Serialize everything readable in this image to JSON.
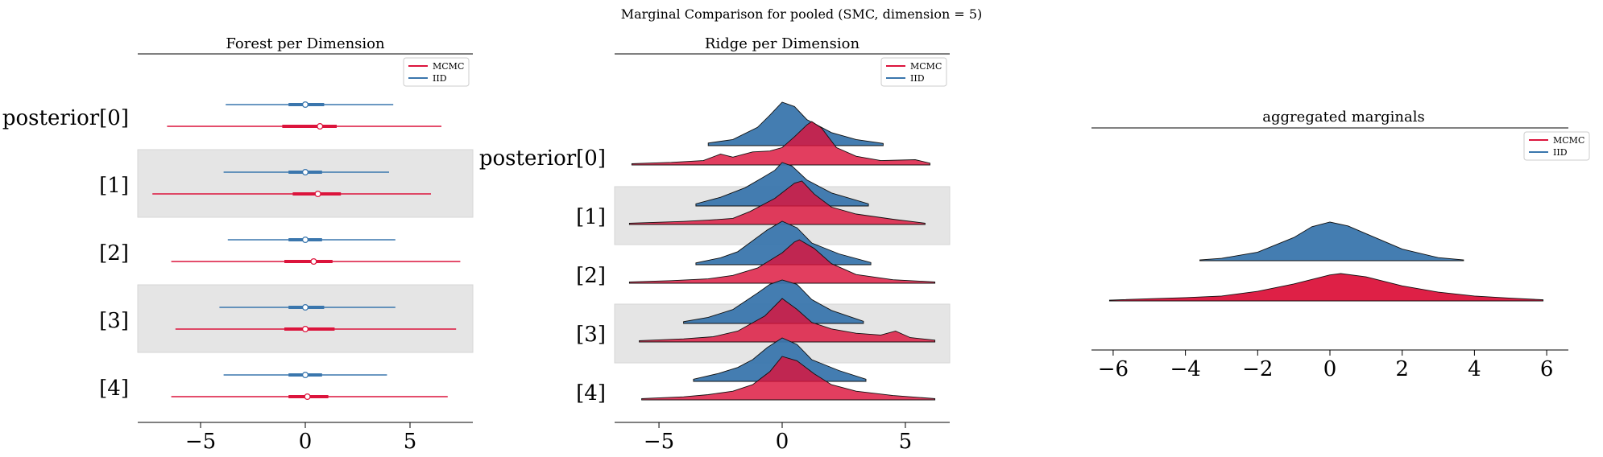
{
  "suptitle": "Marginal Comparison for pooled (SMC, dimension = 5)",
  "colors": {
    "mcmc": "#dc143c",
    "iid": "#3a76ad",
    "band": "#e5e5e5"
  },
  "legend": [
    "MCMC",
    "IID"
  ],
  "forest_panel": {
    "title": "Forest per Dimension",
    "row_labels": [
      "posterior[0]",
      "[1]",
      "[2]",
      "[3]",
      "[4]"
    ],
    "xticks": [
      "−5",
      "0",
      "5"
    ]
  },
  "ridge_panel": {
    "title": "Ridge per Dimension",
    "row_labels": [
      "posterior[0]",
      "[1]",
      "[2]",
      "[3]",
      "[4]"
    ],
    "xticks": [
      "−5",
      "0",
      "5"
    ]
  },
  "aggregate_panel": {
    "title": "aggregated marginals",
    "xticks": [
      "−6",
      "−4",
      "−2",
      "0",
      "2",
      "4",
      "6"
    ]
  },
  "chart_data": [
    {
      "type": "forest",
      "title": "Forest per Dimension",
      "categories": [
        "posterior[0]",
        "[1]",
        "[2]",
        "[3]",
        "[4]"
      ],
      "xlim": [
        -8,
        8
      ],
      "legend_placement": "top-right",
      "series": [
        {
          "name": "MCMC",
          "points": [
            {
              "hdi": [
                -6.6,
                6.5
              ],
              "iqr": [
                -1.1,
                1.5
              ],
              "median": 0.7
            },
            {
              "hdi": [
                -7.3,
                6.0
              ],
              "iqr": [
                -0.6,
                1.7
              ],
              "median": 0.6
            },
            {
              "hdi": [
                -6.4,
                7.4
              ],
              "iqr": [
                -1.0,
                1.3
              ],
              "median": 0.4
            },
            {
              "hdi": [
                -6.2,
                7.2
              ],
              "iqr": [
                -1.0,
                1.4
              ],
              "median": 0.0
            },
            {
              "hdi": [
                -6.4,
                6.8
              ],
              "iqr": [
                -0.8,
                1.1
              ],
              "median": 0.1
            }
          ]
        },
        {
          "name": "IID",
          "points": [
            {
              "hdi": [
                -3.8,
                4.2
              ],
              "iqr": [
                -0.8,
                0.9
              ],
              "median": 0.0
            },
            {
              "hdi": [
                -3.9,
                4.0
              ],
              "iqr": [
                -0.8,
                0.8
              ],
              "median": 0.0
            },
            {
              "hdi": [
                -3.7,
                4.3
              ],
              "iqr": [
                -0.8,
                0.8
              ],
              "median": 0.0
            },
            {
              "hdi": [
                -4.1,
                4.3
              ],
              "iqr": [
                -0.8,
                0.9
              ],
              "median": 0.0
            },
            {
              "hdi": [
                -3.9,
                3.9
              ],
              "iqr": [
                -0.8,
                0.8
              ],
              "median": 0.0
            }
          ]
        }
      ]
    },
    {
      "type": "area",
      "title": "Ridge per Dimension",
      "categories": [
        "posterior[0]",
        "[1]",
        "[2]",
        "[3]",
        "[4]"
      ],
      "xlim": [
        -6.8,
        6.8
      ],
      "legend_placement": "top-right",
      "series": [
        {
          "name": "IID",
          "ridges": [
            {
              "range": [
                -3.0,
                4.1
              ],
              "pts": [
                [
                  -3.0,
                  0.06
                ],
                [
                  -2.0,
                  0.14
                ],
                [
                  -1.0,
                  0.42
                ],
                [
                  -0.5,
                  0.7
                ],
                [
                  0.0,
                  1.0
                ],
                [
                  0.5,
                  0.9
                ],
                [
                  1.0,
                  0.6
                ],
                [
                  2.0,
                  0.3
                ],
                [
                  3.0,
                  0.14
                ],
                [
                  4.1,
                  0.05
                ]
              ]
            },
            {
              "range": [
                -3.5,
                3.5
              ],
              "pts": [
                [
                  -3.5,
                  0.05
                ],
                [
                  -2.5,
                  0.2
                ],
                [
                  -1.5,
                  0.42
                ],
                [
                  -0.8,
                  0.65
                ],
                [
                  -0.3,
                  0.82
                ],
                [
                  0.0,
                  1.0
                ],
                [
                  0.4,
                  0.92
                ],
                [
                  1.0,
                  0.6
                ],
                [
                  2.0,
                  0.3
                ],
                [
                  3.5,
                  0.05
                ]
              ]
            },
            {
              "range": [
                -3.5,
                3.6
              ],
              "pts": [
                [
                  -3.5,
                  0.04
                ],
                [
                  -2.5,
                  0.16
                ],
                [
                  -1.8,
                  0.3
                ],
                [
                  -1.2,
                  0.55
                ],
                [
                  -0.6,
                  0.8
                ],
                [
                  0.0,
                  1.0
                ],
                [
                  0.6,
                  0.85
                ],
                [
                  1.2,
                  0.5
                ],
                [
                  2.3,
                  0.25
                ],
                [
                  3.6,
                  0.05
                ]
              ]
            },
            {
              "range": [
                -4.0,
                3.3
              ],
              "pts": [
                [
                  -4.0,
                  0.04
                ],
                [
                  -3.0,
                  0.14
                ],
                [
                  -2.0,
                  0.32
                ],
                [
                  -1.0,
                  0.7
                ],
                [
                  -0.5,
                  0.9
                ],
                [
                  0.0,
                  1.0
                ],
                [
                  0.6,
                  0.9
                ],
                [
                  1.2,
                  0.55
                ],
                [
                  2.0,
                  0.3
                ],
                [
                  3.3,
                  0.05
                ]
              ]
            },
            {
              "range": [
                -3.6,
                3.4
              ],
              "pts": [
                [
                  -3.6,
                  0.05
                ],
                [
                  -2.6,
                  0.18
                ],
                [
                  -1.8,
                  0.32
                ],
                [
                  -1.2,
                  0.5
                ],
                [
                  -0.6,
                  0.78
                ],
                [
                  0.0,
                  1.0
                ],
                [
                  0.6,
                  0.85
                ],
                [
                  1.2,
                  0.5
                ],
                [
                  2.3,
                  0.25
                ],
                [
                  3.4,
                  0.05
                ]
              ]
            }
          ]
        },
        {
          "name": "MCMC",
          "ridges": [
            {
              "range": [
                -6.1,
                6.0
              ],
              "pts": [
                [
                  -6.1,
                  0.03
                ],
                [
                  -4.5,
                  0.06
                ],
                [
                  -3.2,
                  0.1
                ],
                [
                  -2.5,
                  0.25
                ],
                [
                  -2.0,
                  0.18
                ],
                [
                  -1.2,
                  0.3
                ],
                [
                  -0.5,
                  0.32
                ],
                [
                  0.0,
                  0.4
                ],
                [
                  0.5,
                  0.65
                ],
                [
                  1.0,
                  0.92
                ],
                [
                  1.2,
                  1.0
                ],
                [
                  1.6,
                  0.85
                ],
                [
                  2.2,
                  0.4
                ],
                [
                  3.0,
                  0.2
                ],
                [
                  4.0,
                  0.1
                ],
                [
                  5.4,
                  0.12
                ],
                [
                  6.0,
                  0.04
                ]
              ]
            },
            {
              "range": [
                -6.2,
                5.8
              ],
              "pts": [
                [
                  -6.2,
                  0.03
                ],
                [
                  -4.0,
                  0.07
                ],
                [
                  -3.0,
                  0.1
                ],
                [
                  -2.0,
                  0.14
                ],
                [
                  -1.3,
                  0.3
                ],
                [
                  -0.3,
                  0.6
                ],
                [
                  0.5,
                  0.95
                ],
                [
                  0.8,
                  1.0
                ],
                [
                  1.3,
                  0.7
                ],
                [
                  2.0,
                  0.4
                ],
                [
                  3.0,
                  0.24
                ],
                [
                  4.5,
                  0.12
                ],
                [
                  5.8,
                  0.03
                ]
              ]
            },
            {
              "range": [
                -6.2,
                6.2
              ],
              "pts": [
                [
                  -6.2,
                  0.03
                ],
                [
                  -4.5,
                  0.06
                ],
                [
                  -3.0,
                  0.1
                ],
                [
                  -2.0,
                  0.18
                ],
                [
                  -1.0,
                  0.35
                ],
                [
                  0.0,
                  0.7
                ],
                [
                  0.5,
                  0.95
                ],
                [
                  0.7,
                  1.0
                ],
                [
                  1.3,
                  0.8
                ],
                [
                  2.0,
                  0.45
                ],
                [
                  3.0,
                  0.2
                ],
                [
                  4.5,
                  0.08
                ],
                [
                  6.2,
                  0.03
                ]
              ]
            },
            {
              "range": [
                -5.8,
                6.2
              ],
              "pts": [
                [
                  -5.8,
                  0.03
                ],
                [
                  -4.0,
                  0.07
                ],
                [
                  -2.8,
                  0.12
                ],
                [
                  -1.8,
                  0.25
                ],
                [
                  -0.7,
                  0.6
                ],
                [
                  0.0,
                  1.0
                ],
                [
                  0.6,
                  0.75
                ],
                [
                  1.2,
                  0.45
                ],
                [
                  2.0,
                  0.3
                ],
                [
                  3.0,
                  0.2
                ],
                [
                  4.0,
                  0.16
                ],
                [
                  4.6,
                  0.25
                ],
                [
                  5.2,
                  0.1
                ],
                [
                  6.2,
                  0.04
                ]
              ]
            },
            {
              "range": [
                -5.7,
                6.2
              ],
              "pts": [
                [
                  -5.7,
                  0.03
                ],
                [
                  -4.0,
                  0.07
                ],
                [
                  -3.0,
                  0.12
                ],
                [
                  -2.0,
                  0.2
                ],
                [
                  -1.2,
                  0.35
                ],
                [
                  -0.5,
                  0.65
                ],
                [
                  0.0,
                  1.0
                ],
                [
                  0.6,
                  0.9
                ],
                [
                  1.3,
                  0.6
                ],
                [
                  2.0,
                  0.35
                ],
                [
                  3.0,
                  0.2
                ],
                [
                  4.5,
                  0.1
                ],
                [
                  6.2,
                  0.03
                ]
              ]
            }
          ]
        }
      ]
    },
    {
      "type": "area",
      "title": "aggregated marginals",
      "xlim": [
        -6.6,
        6.6
      ],
      "legend_placement": "top-right",
      "series": [
        {
          "name": "IID",
          "range": [
            -3.6,
            3.7
          ],
          "pts": [
            [
              -3.6,
              0.02
            ],
            [
              -3.0,
              0.06
            ],
            [
              -2.0,
              0.22
            ],
            [
              -1.0,
              0.6
            ],
            [
              -0.5,
              0.88
            ],
            [
              0.0,
              1.0
            ],
            [
              0.5,
              0.9
            ],
            [
              1.0,
              0.7
            ],
            [
              2.0,
              0.3
            ],
            [
              3.0,
              0.08
            ],
            [
              3.7,
              0.02
            ]
          ]
        },
        {
          "name": "MCMC",
          "range": [
            -6.1,
            5.9
          ],
          "pts": [
            [
              -6.1,
              0.03
            ],
            [
              -5.0,
              0.08
            ],
            [
              -4.0,
              0.12
            ],
            [
              -3.0,
              0.18
            ],
            [
              -2.0,
              0.35
            ],
            [
              -1.0,
              0.62
            ],
            [
              0.0,
              0.95
            ],
            [
              0.3,
              1.0
            ],
            [
              1.0,
              0.88
            ],
            [
              2.0,
              0.55
            ],
            [
              3.0,
              0.32
            ],
            [
              4.0,
              0.18
            ],
            [
              5.0,
              0.1
            ],
            [
              5.9,
              0.04
            ]
          ]
        }
      ]
    }
  ]
}
